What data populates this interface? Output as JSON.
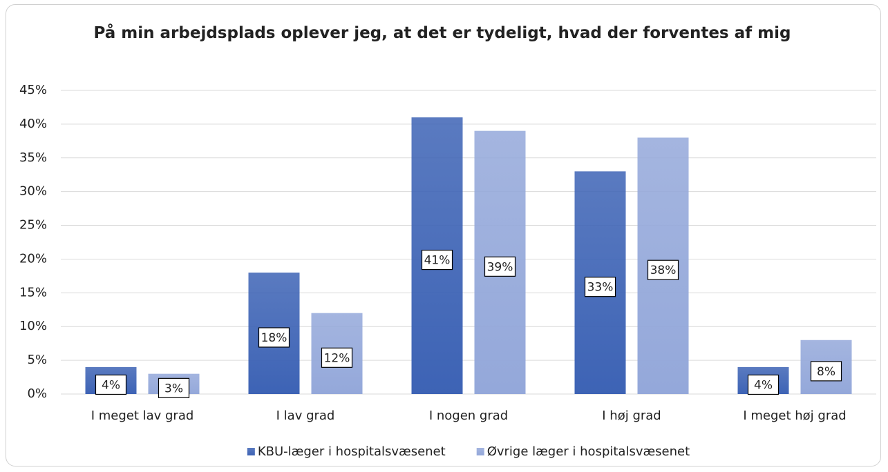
{
  "chart_data": {
    "type": "bar",
    "title": "På min arbejdsplads oplever jeg, at det er tydeligt, hvad der forventes af mig",
    "categories": [
      "I meget lav grad",
      "I lav grad",
      "I nogen grad",
      "I høj grad",
      "I meget høj grad"
    ],
    "series": [
      {
        "name": "KBU-læger i hospitalsvæsenet",
        "color": "#3d63b5",
        "values": [
          4,
          18,
          41,
          33,
          4
        ],
        "value_labels": [
          "4%",
          "18%",
          "41%",
          "33%",
          "4%"
        ]
      },
      {
        "name": "Øvrige læger i hospitalsvæsenet",
        "color": "#94a8da",
        "values": [
          3,
          12,
          39,
          38,
          8
        ],
        "value_labels": [
          "3%",
          "12%",
          "39%",
          "38%",
          "8%"
        ]
      }
    ],
    "ylim": [
      0,
      45
    ],
    "yticks": [
      {
        "value": 0,
        "label": "0%"
      },
      {
        "value": 5,
        "label": "5%"
      },
      {
        "value": 10,
        "label": "10%"
      },
      {
        "value": 15,
        "label": "15%"
      },
      {
        "value": 20,
        "label": "20%"
      },
      {
        "value": 25,
        "label": "25%"
      },
      {
        "value": 30,
        "label": "30%"
      },
      {
        "value": 35,
        "label": "35%"
      },
      {
        "value": 40,
        "label": "40%"
      },
      {
        "value": 45,
        "label": "45%"
      }
    ],
    "grid": true,
    "legend": "bottom"
  }
}
